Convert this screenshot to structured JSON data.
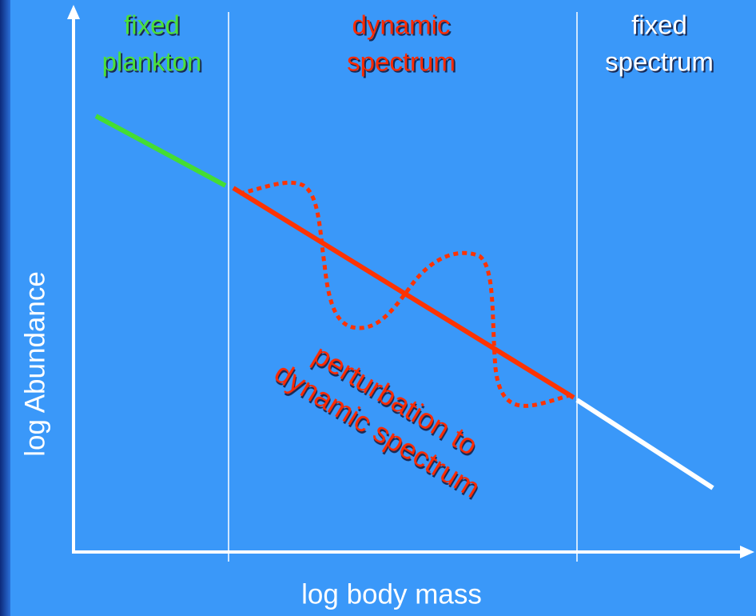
{
  "regions": [
    {
      "lines": [
        "fixed",
        "plankton"
      ]
    },
    {
      "lines": [
        "dynamic",
        "spectrum"
      ]
    },
    {
      "lines": [
        "fixed",
        "spectrum"
      ]
    }
  ],
  "y_axis_label": "log Abundance",
  "x_axis_label": "log body mass",
  "annotation": {
    "lines": [
      "perturbation to",
      "dynamic spectrum"
    ]
  }
}
